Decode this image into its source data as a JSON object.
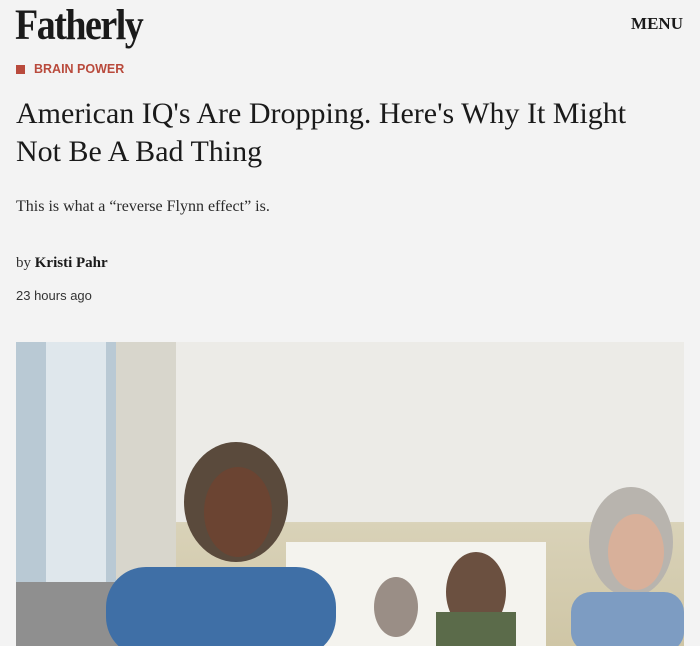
{
  "header": {
    "logo": "Fatherly",
    "menu_label": "MENU"
  },
  "article": {
    "category": "BRAIN POWER",
    "title": "American IQ's Are Dropping. Here's Why It Might Not Be A Bad Thing",
    "dek": "This is what a “reverse Flynn effect” is.",
    "byline_prefix": "by",
    "author": "Kristi Pahr",
    "timestamp": "23 hours ago"
  },
  "colors": {
    "accent": "#b94a3c",
    "background": "#f3f3f3"
  }
}
